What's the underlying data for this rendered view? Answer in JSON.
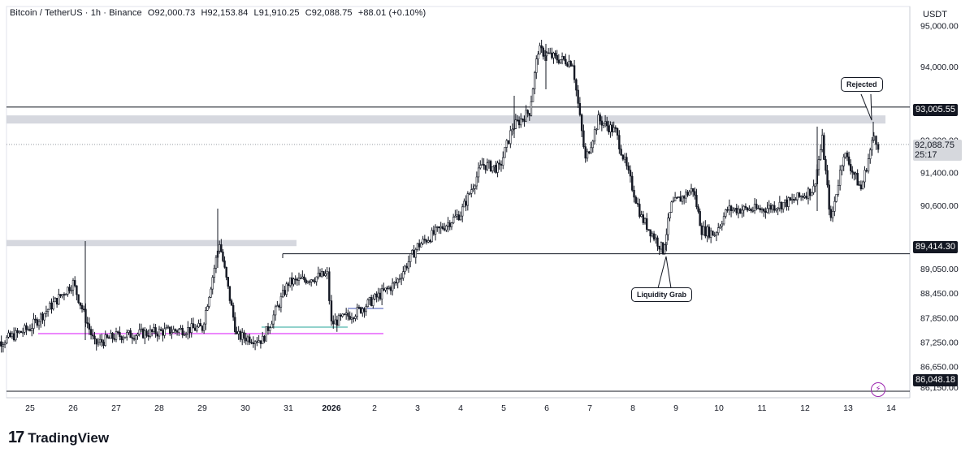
{
  "legend": {
    "symbol": "Bitcoin / TetherUS · 1h · Binance",
    "open": "O92,000.73",
    "high": "H92,153.84",
    "low": "L91,910.25",
    "close": "C92,088.75",
    "change": "+88.01 (+0.10%)"
  },
  "currency": "USDT",
  "price_tags": {
    "level_top": "93,005.55",
    "current": "92,088.75",
    "countdown": "25:17",
    "level_mid": "89,414.30",
    "level_bottom": "86,048.18"
  },
  "annotations": {
    "rejected": "Rejected",
    "liquidity_grab": "Liquidity Grab"
  },
  "brand": {
    "mark": "17",
    "name": "TradingView"
  },
  "icons": {
    "alert": "lightning-icon"
  },
  "colors": {
    "up": "#131722",
    "down": "#131722",
    "zone": "#d1d4dc",
    "pink_line": "#e040fb",
    "accent": "#9c27b0"
  },
  "chart_data": {
    "type": "candlestick",
    "x_ticks": [
      "25",
      "26",
      "27",
      "28",
      "29",
      "30",
      "31",
      "2026",
      "2",
      "3",
      "4",
      "5",
      "6",
      "7",
      "8",
      "9",
      "10",
      "11",
      "12",
      "13",
      "14"
    ],
    "y_ticks": [
      "95,000.00",
      "94,000.00",
      "92,200.00",
      "91,400.00",
      "90,600.00",
      "89,050.00",
      "88,450.00",
      "87,850.00",
      "87,250.00",
      "86,650.00",
      "86,150.00"
    ],
    "ylim": [
      85900,
      95400
    ],
    "horizontal_levels": [
      93005.55,
      89414.3,
      86048.18
    ],
    "zones": [
      {
        "low": 92600,
        "high": 92800,
        "from": "24",
        "to": "14"
      },
      {
        "low": 89600,
        "high": 89750,
        "from": "24",
        "to": "31"
      }
    ],
    "close_path": [
      [
        "24",
        87100
      ],
      [
        "25",
        87600
      ],
      [
        "26",
        88700
      ],
      [
        "26.5",
        87200
      ],
      [
        "27",
        87400
      ],
      [
        "28",
        87500
      ],
      [
        "29",
        87600
      ],
      [
        "29.4",
        89700
      ],
      [
        "29.8",
        87400
      ],
      [
        "30.4",
        87300
      ],
      [
        "31",
        88700
      ],
      [
        "31.9",
        88900
      ],
      [
        "1",
        87700
      ],
      [
        "1.6",
        88000
      ],
      [
        "2.5",
        88700
      ],
      [
        "3",
        89600
      ],
      [
        "4",
        90400
      ],
      [
        "4.5",
        91600
      ],
      [
        "4.9",
        91500
      ],
      [
        "5.2",
        92500
      ],
      [
        "5.6",
        92900
      ],
      [
        "5.8",
        94400
      ],
      [
        "6.2",
        94200
      ],
      [
        "6.6",
        94100
      ],
      [
        "6.9",
        91700
      ],
      [
        "7.2",
        92700
      ],
      [
        "7.6",
        92400
      ],
      [
        "8.2",
        90300
      ],
      [
        "8.7",
        89500
      ],
      [
        "8.9",
        90600
      ],
      [
        "9.4",
        91000
      ],
      [
        "9.6",
        90000
      ],
      [
        "9.9",
        89900
      ],
      [
        "10.2",
        90500
      ],
      [
        "11",
        90500
      ],
      [
        "11.7",
        90700
      ],
      [
        "12.2",
        91000
      ],
      [
        "12.4",
        92200
      ],
      [
        "12.6",
        90200
      ],
      [
        "12.9",
        91900
      ],
      [
        "13.3",
        91000
      ],
      [
        "13.6",
        92300
      ],
      [
        "13.7",
        92089
      ]
    ],
    "candle_ohlc": [
      {
        "date": "13.7",
        "open": 92000.73,
        "high": 92153.84,
        "low": 91910.25,
        "close": 92088.75
      }
    ]
  }
}
